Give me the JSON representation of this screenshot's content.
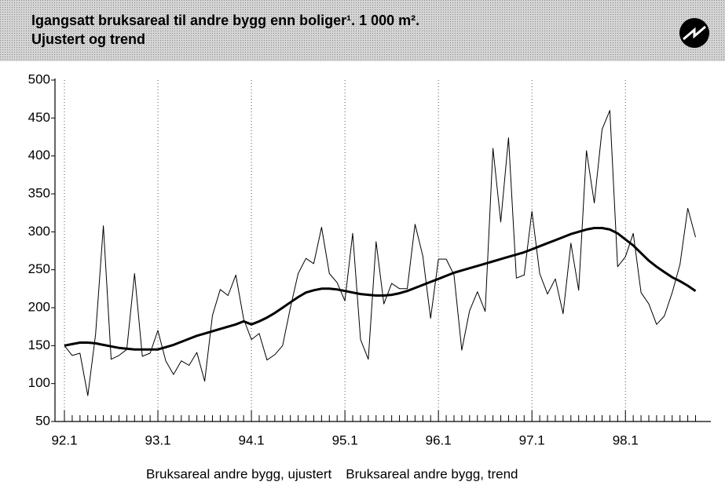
{
  "chart_data": {
    "type": "line",
    "title": "Igangsatt bruksareal til andre bygg enn boliger¹. 1 000 m².",
    "subtitle": "Ujustert og trend",
    "categories": [
      "92.1",
      null,
      null,
      null,
      null,
      null,
      null,
      null,
      null,
      null,
      null,
      null,
      "93.1",
      null,
      null,
      null,
      null,
      null,
      null,
      null,
      null,
      null,
      null,
      null,
      "94.1",
      null,
      null,
      null,
      null,
      null,
      null,
      null,
      null,
      null,
      null,
      null,
      "95.1",
      null,
      null,
      null,
      null,
      null,
      null,
      null,
      null,
      null,
      null,
      null,
      "96.1",
      null,
      null,
      null,
      null,
      null,
      null,
      null,
      null,
      null,
      null,
      null,
      "97.1",
      null,
      null,
      null,
      null,
      null,
      null,
      null,
      null,
      null,
      null,
      null,
      "98.1",
      null,
      null,
      null,
      null,
      null,
      null,
      null,
      null,
      null
    ],
    "series": [
      {
        "name": "Bruksareal andre bygg, ujustert",
        "color": "#000000",
        "width": 1,
        "values": [
          150,
          137,
          140,
          84,
          165,
          308,
          132,
          137,
          145,
          245,
          136,
          140,
          170,
          130,
          112,
          130,
          124,
          141,
          103,
          190,
          224,
          216,
          243,
          185,
          158,
          166,
          131,
          138,
          150,
          200,
          245,
          265,
          258,
          306,
          245,
          233,
          209,
          298,
          158,
          132,
          287,
          205,
          232,
          225,
          225,
          310,
          268,
          186,
          264,
          264,
          243,
          144,
          196,
          221,
          195,
          410,
          313,
          424,
          239,
          243,
          327,
          245,
          218,
          238,
          192,
          285,
          223,
          407,
          338,
          435,
          460,
          254,
          267,
          298,
          220,
          205,
          178,
          189,
          220,
          257,
          331,
          293
        ]
      },
      {
        "name": "Bruksareal andre bygg, trend",
        "color": "#000000",
        "width": 3,
        "values": [
          150,
          152,
          154,
          154,
          153,
          151,
          149,
          147,
          146,
          145,
          145,
          145,
          145,
          148,
          151,
          155,
          159,
          163,
          166,
          169,
          172,
          175,
          178,
          182,
          178,
          182,
          187,
          193,
          200,
          207,
          214,
          220,
          223,
          225,
          225,
          224,
          222,
          220,
          218,
          217,
          216,
          216,
          217,
          219,
          222,
          226,
          230,
          234,
          238,
          242,
          246,
          249,
          252,
          255,
          258,
          261,
          264,
          267,
          270,
          273,
          277,
          281,
          285,
          289,
          293,
          297,
          300,
          303,
          305,
          305,
          303,
          298,
          290,
          282,
          272,
          262,
          254,
          247,
          240,
          235,
          229,
          222
        ]
      }
    ],
    "ylim": [
      50,
      500
    ],
    "yticks": [
      50,
      100,
      150,
      200,
      250,
      300,
      350,
      400,
      450,
      500
    ],
    "grid": "x"
  }
}
